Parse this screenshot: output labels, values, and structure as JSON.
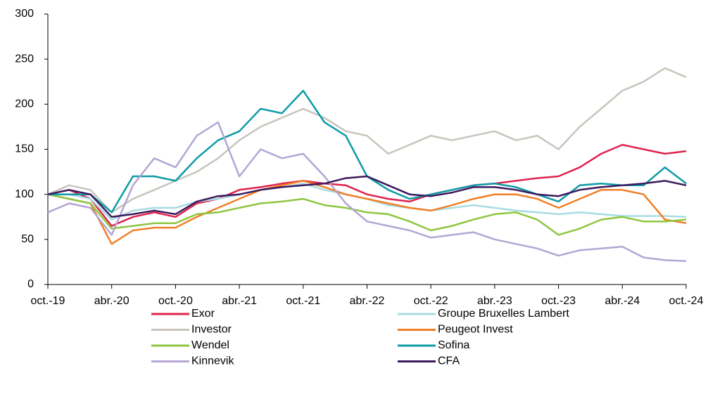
{
  "chart_data": {
    "type": "line",
    "categories": [
      "oct.-19",
      null,
      null,
      "abr.-20",
      null,
      null,
      "oct.-20",
      null,
      null,
      "abr.-21",
      null,
      null,
      "oct.-21",
      null,
      null,
      "abr.-22",
      null,
      null,
      "oct.-22",
      null,
      null,
      "abr.-23",
      null,
      null,
      "oct.-23",
      null,
      null,
      "abr.-24",
      null,
      null,
      "oct.-24"
    ],
    "ylim": [
      0,
      300
    ],
    "yticks": [
      0,
      50,
      100,
      150,
      200,
      250,
      300
    ],
    "grid": false,
    "series": [
      {
        "name": "Exor",
        "color": "#e0234e",
        "values": [
          100,
          105,
          95,
          65,
          75,
          80,
          75,
          90,
          95,
          105,
          108,
          112,
          115,
          112,
          110,
          100,
          95,
          92,
          100,
          105,
          110,
          112,
          115,
          118,
          120,
          130,
          145,
          155,
          150,
          145,
          148
        ]
      },
      {
        "name": "Groupe Bruxelles Lambert",
        "color": "#a8dce3",
        "values": [
          100,
          100,
          95,
          72,
          82,
          85,
          85,
          92,
          95,
          100,
          105,
          108,
          112,
          105,
          100,
          95,
          88,
          85,
          82,
          85,
          88,
          85,
          82,
          80,
          78,
          80,
          78,
          76,
          76,
          76,
          75
        ]
      },
      {
        "name": "Investor",
        "color": "#c9c4bc",
        "values": [
          100,
          110,
          105,
          80,
          95,
          105,
          115,
          125,
          140,
          160,
          175,
          185,
          195,
          185,
          170,
          165,
          145,
          155,
          165,
          160,
          165,
          170,
          160,
          165,
          150,
          175,
          195,
          215,
          225,
          240,
          230
        ]
      },
      {
        "name": "Peugeot Invest",
        "color": "#f07f25",
        "values": [
          100,
          95,
          90,
          45,
          60,
          63,
          63,
          75,
          85,
          95,
          105,
          110,
          115,
          108,
          100,
          95,
          90,
          85,
          82,
          88,
          95,
          100,
          100,
          95,
          85,
          95,
          105,
          105,
          100,
          72,
          68
        ]
      },
      {
        "name": "Wendel",
        "color": "#8dc63f",
        "values": [
          100,
          95,
          90,
          62,
          65,
          68,
          68,
          78,
          80,
          85,
          90,
          92,
          95,
          88,
          85,
          80,
          78,
          70,
          60,
          65,
          72,
          78,
          80,
          72,
          55,
          62,
          72,
          75,
          70,
          70,
          72
        ]
      },
      {
        "name": "Sofina",
        "color": "#0e9aa7",
        "values": [
          100,
          100,
          100,
          80,
          120,
          120,
          115,
          140,
          160,
          170,
          195,
          190,
          215,
          180,
          165,
          120,
          105,
          95,
          100,
          105,
          110,
          112,
          108,
          100,
          92,
          110,
          112,
          110,
          110,
          130,
          112
        ]
      },
      {
        "name": "Kinnevik",
        "color": "#b3a6d4",
        "values": [
          80,
          90,
          85,
          55,
          110,
          140,
          130,
          165,
          180,
          120,
          150,
          140,
          145,
          120,
          90,
          70,
          65,
          60,
          52,
          55,
          58,
          50,
          45,
          40,
          32,
          38,
          40,
          42,
          30,
          27,
          26
        ]
      },
      {
        "name": "CFA",
        "color": "#3b1a5e",
        "values": [
          100,
          105,
          100,
          75,
          78,
          82,
          78,
          92,
          98,
          100,
          105,
          108,
          110,
          112,
          118,
          120,
          110,
          100,
          98,
          102,
          108,
          108,
          105,
          100,
          98,
          105,
          108,
          110,
          112,
          115,
          110
        ]
      }
    ]
  }
}
